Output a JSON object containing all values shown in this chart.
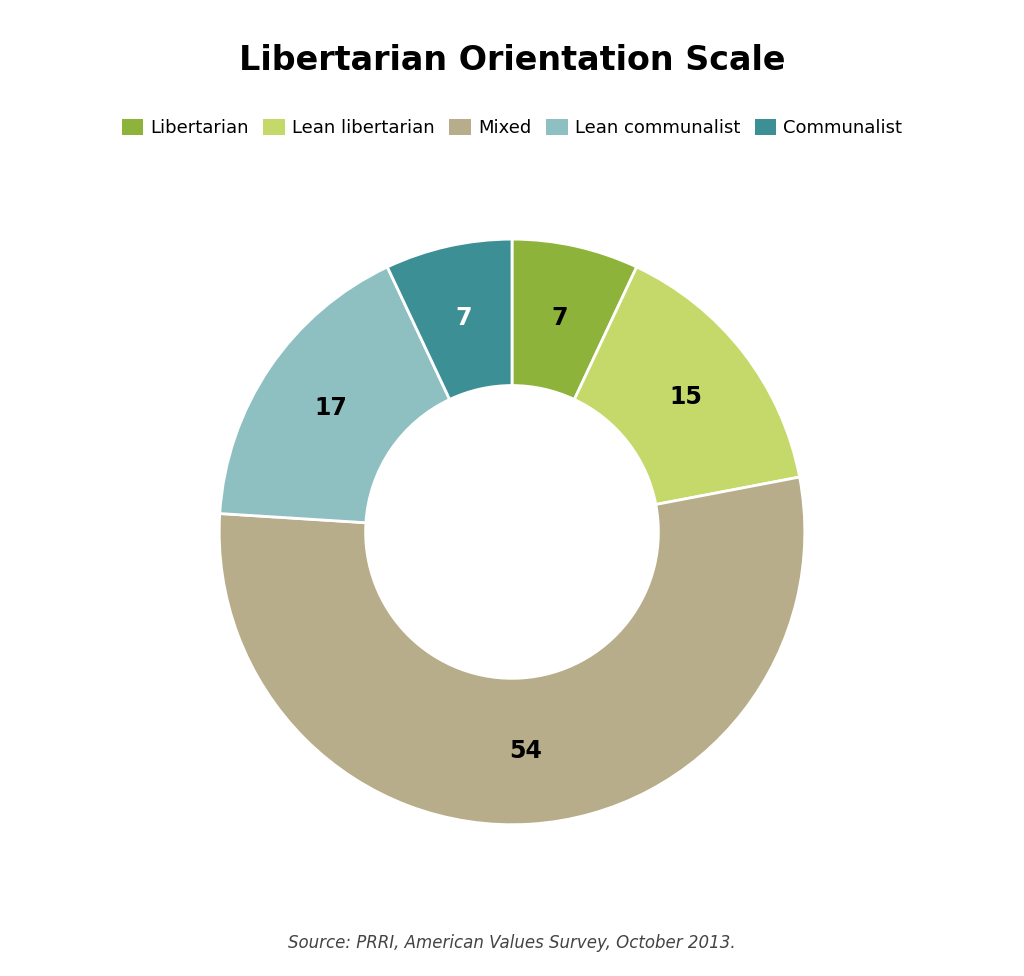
{
  "title": "Libertarian Orientation Scale",
  "source_text": "Source: PRRI, American Values Survey, October 2013.",
  "labels": [
    "Libertarian",
    "Lean libertarian",
    "Mixed",
    "Lean communalist",
    "Communalist"
  ],
  "values": [
    7,
    15,
    54,
    17,
    7
  ],
  "colors": [
    "#8db33a",
    "#c5d96a",
    "#b8ad8a",
    "#8ec0c2",
    "#3d8f96"
  ],
  "text_colors": [
    "#000000",
    "#000000",
    "#000000",
    "#000000",
    "#ffffff"
  ],
  "title_fontsize": 24,
  "legend_fontsize": 13,
  "label_fontsize": 17,
  "source_fontsize": 12,
  "background_color": "#ffffff"
}
